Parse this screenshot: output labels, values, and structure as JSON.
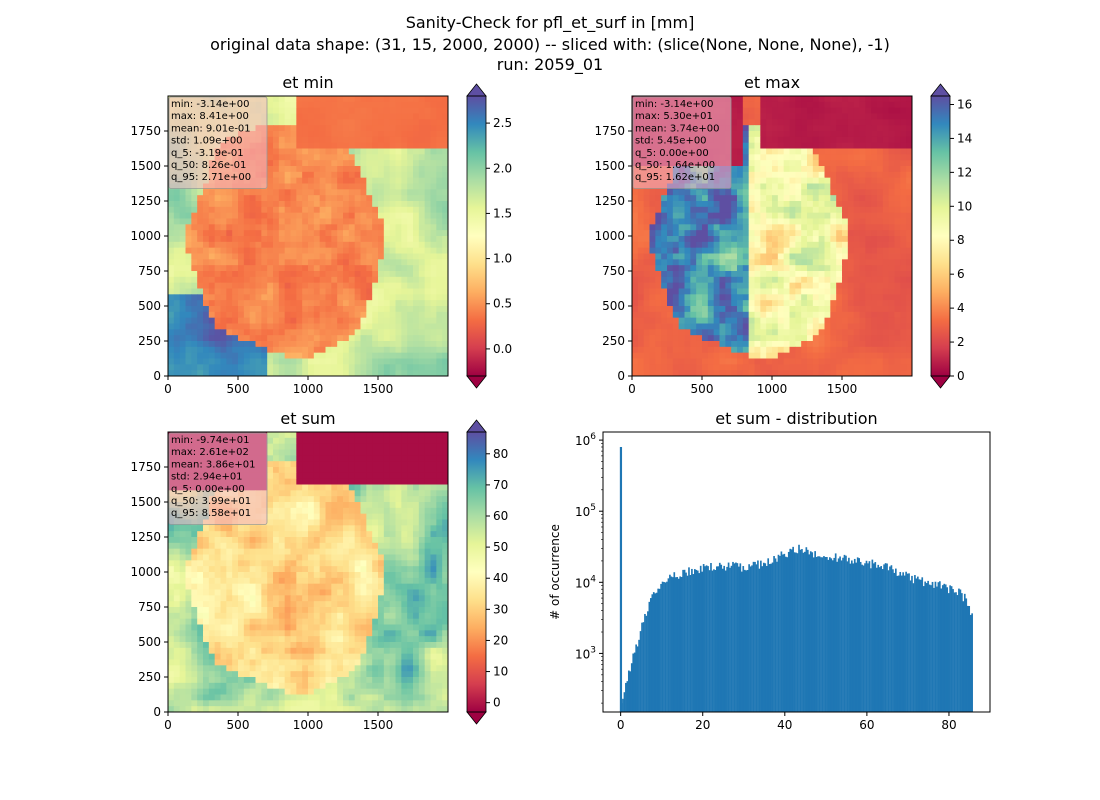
{
  "figure": {
    "title_lines": [
      "Sanity-Check for pfl_et_surf in [mm]",
      "original data shape: (31, 15, 2000, 2000) -- sliced with: (slice(None, None, None), -1)",
      "run: 2059_01"
    ]
  },
  "colors": {
    "spectral": [
      "#9e0142",
      "#d53e4f",
      "#f46d43",
      "#fdae61",
      "#fee08b",
      "#ffffbf",
      "#e6f598",
      "#abdda4",
      "#66c2a5",
      "#3288bd",
      "#5e4fa2"
    ],
    "hist_bar": "#1f77b4",
    "stats_box": "#f4b8c8"
  },
  "chart_data": [
    {
      "type": "heatmap",
      "title": "et min",
      "x_ticks": [
        "0",
        "500",
        "1000",
        "1500"
      ],
      "y_ticks": [
        "0",
        "250",
        "500",
        "750",
        "1000",
        "1250",
        "1500",
        "1750"
      ],
      "xlim": [
        0,
        2000
      ],
      "ylim": [
        0,
        2000
      ],
      "colorbar": {
        "range": [
          -0.3,
          2.8
        ],
        "ticks": [
          "0.0",
          "0.5",
          "1.0",
          "1.5",
          "2.0",
          "2.5"
        ],
        "tick_values": [
          0.0,
          0.5,
          1.0,
          1.5,
          2.0,
          2.5
        ],
        "extend": "both"
      },
      "stats": [
        "min: -3.14e+00",
        "max: 8.41e+00",
        "mean: 9.01e-01",
        "std: 1.09e+00",
        "q_5: -3.19e-01",
        "q_50: 8.26e-01",
        "q_95: 2.71e+00"
      ],
      "colormap": "Spectral"
    },
    {
      "type": "heatmap",
      "title": "et max",
      "x_ticks": [
        "0",
        "500",
        "1000",
        "1500"
      ],
      "y_ticks": [
        "0",
        "250",
        "500",
        "750",
        "1000",
        "1250",
        "1500",
        "1750"
      ],
      "xlim": [
        0,
        2000
      ],
      "ylim": [
        0,
        2000
      ],
      "colorbar": {
        "range": [
          0,
          16.5
        ],
        "ticks": [
          "0",
          "2",
          "4",
          "6",
          "8",
          "10",
          "12",
          "14",
          "16"
        ],
        "tick_values": [
          0,
          2,
          4,
          6,
          8,
          10,
          12,
          14,
          16
        ],
        "extend": "both"
      },
      "stats": [
        "min: -3.14e+00",
        "max: 5.30e+01",
        "mean: 3.74e+00",
        "std: 5.45e+00",
        "q_5: 0.00e+00",
        "q_50: 1.64e+00",
        "q_95: 1.62e+01"
      ],
      "colormap": "Spectral"
    },
    {
      "type": "heatmap",
      "title": "et sum",
      "x_ticks": [
        "0",
        "500",
        "1000",
        "1500"
      ],
      "y_ticks": [
        "0",
        "250",
        "500",
        "750",
        "1000",
        "1250",
        "1500",
        "1750"
      ],
      "xlim": [
        0,
        2000
      ],
      "ylim": [
        0,
        2000
      ],
      "colorbar": {
        "range": [
          -3,
          87
        ],
        "ticks": [
          "0",
          "10",
          "20",
          "30",
          "40",
          "50",
          "60",
          "70",
          "80"
        ],
        "tick_values": [
          0,
          10,
          20,
          30,
          40,
          50,
          60,
          70,
          80
        ],
        "extend": "both"
      },
      "stats": [
        "min: -9.74e+01",
        "max: 2.61e+02",
        "mean: 3.86e+01",
        "std: 2.94e+01",
        "q_5: 0.00e+00",
        "q_50: 3.99e+01",
        "q_95: 8.58e+01"
      ],
      "colormap": "Spectral"
    },
    {
      "type": "bar",
      "title": "et sum - distribution",
      "ylabel": "# of occurrence",
      "xlabel": "",
      "yscale": "log",
      "xlim": [
        -4.3,
        90
      ],
      "ylim": [
        150,
        1300000
      ],
      "x_ticks": [
        "0",
        "20",
        "40",
        "60",
        "80"
      ],
      "x_tick_values": [
        0,
        20,
        40,
        60,
        80
      ],
      "y_ticks": [
        "10^3",
        "10^4",
        "10^5",
        "10^6"
      ],
      "y_tick_values": [
        1000,
        10000,
        100000,
        1000000
      ],
      "bin_range": [
        0,
        85.8
      ],
      "spike": {
        "x": 0,
        "value": 800000
      },
      "envelope_x": [
        0.3,
        2,
        3,
        4,
        5,
        6,
        7,
        8,
        10,
        12,
        15,
        18,
        20,
        22,
        25,
        28,
        30,
        33,
        35,
        38,
        40,
        42,
        44,
        46,
        48,
        50,
        52,
        55,
        58,
        60,
        62,
        65,
        68,
        70,
        72,
        75,
        78,
        80,
        82,
        84,
        85.5
      ],
      "envelope_y": [
        200,
        550,
        900,
        1400,
        2200,
        3300,
        4800,
        6500,
        9500,
        11500,
        13500,
        15000,
        16000,
        16500,
        17000,
        17000,
        16500,
        17500,
        19000,
        22000,
        25000,
        28000,
        30000,
        27000,
        25000,
        23000,
        23000,
        22000,
        20000,
        18000,
        19000,
        16000,
        14000,
        12000,
        11000,
        10000,
        9000,
        8000,
        7500,
        6000,
        3500
      ]
    }
  ]
}
